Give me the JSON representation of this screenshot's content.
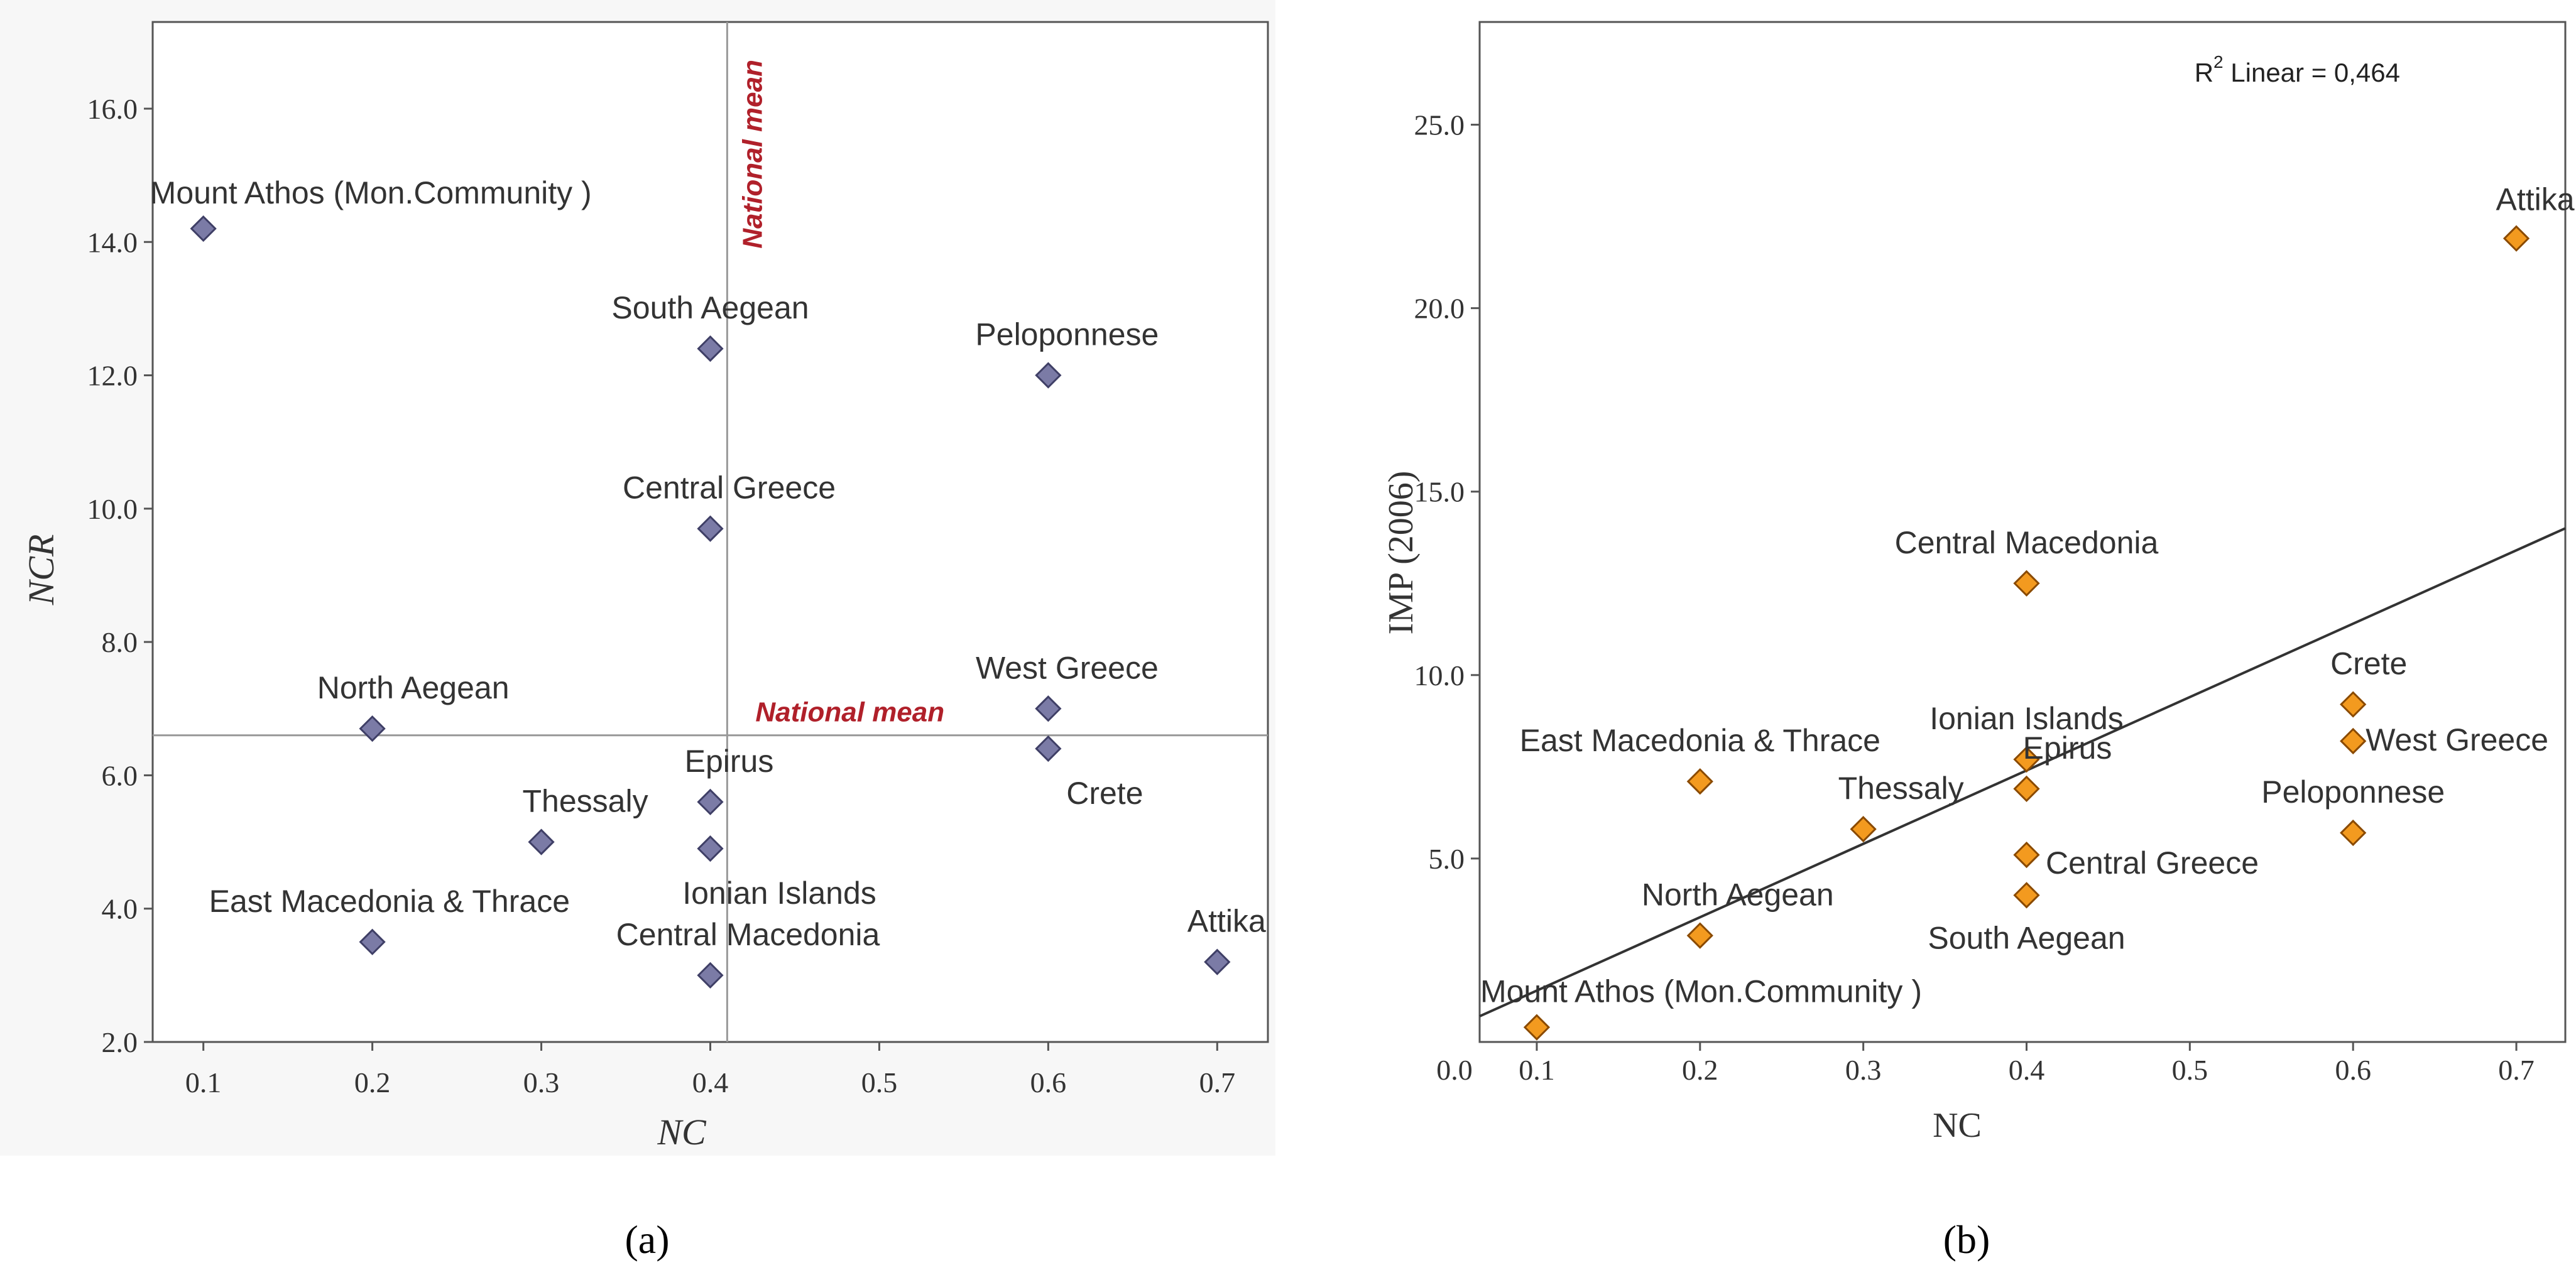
{
  "chart_data": [
    {
      "type": "scatter",
      "panel_label": "(a)",
      "xlabel": "NC",
      "ylabel": "NCR",
      "xlim": [
        0.07,
        0.73
      ],
      "ylim": [
        2.0,
        17.3
      ],
      "xticks": [
        0.1,
        0.2,
        0.3,
        0.4,
        0.5,
        0.6,
        0.7
      ],
      "xtick_labels": [
        "0.1",
        "0.2",
        "0.3",
        "0.4",
        "0.5",
        "0.6",
        "0.7"
      ],
      "yticks": [
        2,
        4,
        6,
        8,
        10,
        12,
        14,
        16
      ],
      "ytick_labels": [
        "2.0",
        "4.0",
        "6.0",
        "8.0",
        "10.0",
        "12.0",
        "14.0",
        "16.0"
      ],
      "grid": false,
      "marker": "diamond",
      "marker_color": "#7b7ba6",
      "reference_lines": [
        {
          "orientation": "vertical",
          "value": 0.41,
          "label": "National mean"
        },
        {
          "orientation": "horizontal",
          "value": 6.6,
          "label": "National mean"
        }
      ],
      "reference_label_color": "#b0202a",
      "points": [
        {
          "name": "Mount Athos (Mon.Community )",
          "x": 0.1,
          "y": 14.2
        },
        {
          "name": "South Aegean",
          "x": 0.4,
          "y": 12.4
        },
        {
          "name": "Peloponnese",
          "x": 0.6,
          "y": 12.0
        },
        {
          "name": "Central Greece",
          "x": 0.4,
          "y": 9.7
        },
        {
          "name": "North Aegean",
          "x": 0.2,
          "y": 6.7
        },
        {
          "name": "West Greece",
          "x": 0.6,
          "y": 7.0
        },
        {
          "name": "Crete",
          "x": 0.6,
          "y": 6.4
        },
        {
          "name": "Epirus",
          "x": 0.4,
          "y": 5.6
        },
        {
          "name": "Thessaly",
          "x": 0.3,
          "y": 5.0
        },
        {
          "name": "Ionian Islands",
          "x": 0.4,
          "y": 4.9
        },
        {
          "name": "East Macedonia & Thrace",
          "x": 0.2,
          "y": 3.5
        },
        {
          "name": "Central Macedonia",
          "x": 0.4,
          "y": 3.0
        },
        {
          "name": "Attika",
          "x": 0.7,
          "y": 3.2
        }
      ]
    },
    {
      "type": "scatter",
      "panel_label": "(b)",
      "xlabel": "NC",
      "ylabel": "IMP (2006)",
      "xlim": [
        0.065,
        0.73
      ],
      "ylim": [
        0.0,
        27.8
      ],
      "xticks": [
        0.0,
        0.1,
        0.2,
        0.3,
        0.4,
        0.5,
        0.6,
        0.7
      ],
      "xtick_labels": [
        "0.0",
        "0.1",
        "0.2",
        "0.3",
        "0.4",
        "0.5",
        "0.6",
        "0.7"
      ],
      "yticks": [
        5,
        10,
        15,
        20,
        25
      ],
      "ytick_labels": [
        "5.0",
        "10.0",
        "15.0",
        "20.0",
        "25.0"
      ],
      "grid": false,
      "marker": "diamond",
      "marker_color": "#f39a1f",
      "annotation": {
        "text": "R",
        "sup": "2",
        "suffix": " Linear = 0,464",
        "placement": "top-right"
      },
      "fit_line": {
        "type": "linear",
        "points": [
          [
            0.065,
            0.7
          ],
          [
            0.73,
            14.0
          ]
        ]
      },
      "points": [
        {
          "name": "Attika",
          "x": 0.7,
          "y": 21.9
        },
        {
          "name": "Central Macedonia",
          "x": 0.4,
          "y": 12.5
        },
        {
          "name": "Crete",
          "x": 0.6,
          "y": 9.2
        },
        {
          "name": "West Greece",
          "x": 0.6,
          "y": 8.2
        },
        {
          "name": "East Macedonia & Thrace",
          "x": 0.2,
          "y": 7.1
        },
        {
          "name": "Ionian Islands",
          "x": 0.4,
          "y": 7.7
        },
        {
          "name": "Thessaly",
          "x": 0.3,
          "y": 5.8
        },
        {
          "name": "Epirus",
          "x": 0.4,
          "y": 6.9
        },
        {
          "name": "Central Greece",
          "x": 0.4,
          "y": 5.1
        },
        {
          "name": "Peloponnese",
          "x": 0.6,
          "y": 5.7
        },
        {
          "name": "South Aegean",
          "x": 0.4,
          "y": 4.0
        },
        {
          "name": "North Aegean",
          "x": 0.2,
          "y": 2.9
        },
        {
          "name": "Mount Athos (Mon.Community )",
          "x": 0.1,
          "y": 0.4
        }
      ]
    }
  ]
}
